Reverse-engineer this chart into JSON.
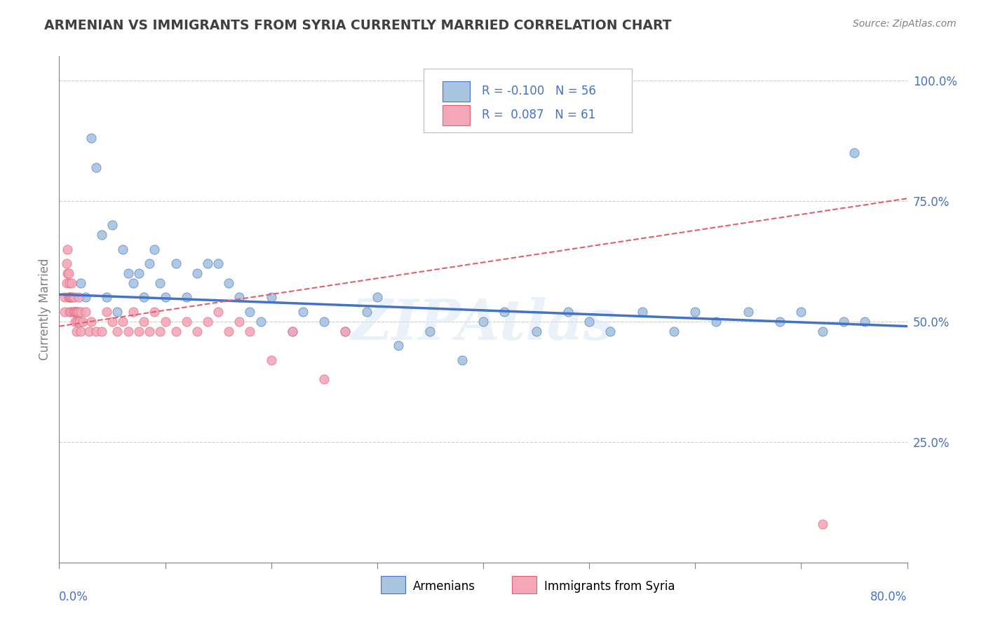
{
  "title": "ARMENIAN VS IMMIGRANTS FROM SYRIA CURRENTLY MARRIED CORRELATION CHART",
  "source": "Source: ZipAtlas.com",
  "ylabel": "Currently Married",
  "legend_r": [
    -0.1,
    0.087
  ],
  "legend_n": [
    56,
    61
  ],
  "armenian_color": "#a8c4e0",
  "syria_color": "#f4a7b9",
  "armenian_line_color": "#4472c4",
  "syria_line_color": "#e06070",
  "title_color": "#404040",
  "axis_color": "#808080",
  "background_color": "#ffffff",
  "armenian_x": [
    0.01,
    0.015,
    0.02,
    0.02,
    0.025,
    0.03,
    0.035,
    0.04,
    0.045,
    0.05,
    0.055,
    0.06,
    0.065,
    0.07,
    0.075,
    0.08,
    0.085,
    0.09,
    0.095,
    0.1,
    0.11,
    0.12,
    0.13,
    0.14,
    0.15,
    0.16,
    0.17,
    0.18,
    0.19,
    0.2,
    0.22,
    0.23,
    0.25,
    0.27,
    0.29,
    0.3,
    0.32,
    0.35,
    0.38,
    0.4,
    0.42,
    0.45,
    0.48,
    0.5,
    0.52,
    0.55,
    0.58,
    0.6,
    0.62,
    0.65,
    0.68,
    0.7,
    0.72,
    0.74,
    0.75,
    0.76
  ],
  "armenian_y": [
    0.55,
    0.52,
    0.58,
    0.5,
    0.55,
    0.88,
    0.82,
    0.68,
    0.55,
    0.7,
    0.52,
    0.65,
    0.6,
    0.58,
    0.6,
    0.55,
    0.62,
    0.65,
    0.58,
    0.55,
    0.62,
    0.55,
    0.6,
    0.62,
    0.62,
    0.58,
    0.55,
    0.52,
    0.5,
    0.55,
    0.48,
    0.52,
    0.5,
    0.48,
    0.52,
    0.55,
    0.45,
    0.48,
    0.42,
    0.5,
    0.52,
    0.48,
    0.52,
    0.5,
    0.48,
    0.52,
    0.48,
    0.52,
    0.5,
    0.52,
    0.5,
    0.52,
    0.48,
    0.5,
    0.85,
    0.5
  ],
  "syria_x": [
    0.005,
    0.005,
    0.007,
    0.007,
    0.008,
    0.008,
    0.009,
    0.009,
    0.01,
    0.01,
    0.01,
    0.011,
    0.011,
    0.012,
    0.012,
    0.013,
    0.013,
    0.014,
    0.014,
    0.015,
    0.015,
    0.016,
    0.016,
    0.017,
    0.017,
    0.018,
    0.018,
    0.019,
    0.02,
    0.02,
    0.022,
    0.025,
    0.028,
    0.03,
    0.035,
    0.04,
    0.045,
    0.05,
    0.055,
    0.06,
    0.065,
    0.07,
    0.075,
    0.08,
    0.085,
    0.09,
    0.095,
    0.1,
    0.11,
    0.12,
    0.13,
    0.14,
    0.15,
    0.16,
    0.17,
    0.18,
    0.2,
    0.22,
    0.25,
    0.27,
    0.72
  ],
  "syria_y": [
    0.52,
    0.55,
    0.58,
    0.62,
    0.6,
    0.65,
    0.55,
    0.6,
    0.52,
    0.55,
    0.58,
    0.52,
    0.55,
    0.55,
    0.58,
    0.52,
    0.55,
    0.52,
    0.55,
    0.52,
    0.5,
    0.52,
    0.48,
    0.52,
    0.5,
    0.55,
    0.52,
    0.5,
    0.52,
    0.48,
    0.5,
    0.52,
    0.48,
    0.5,
    0.48,
    0.48,
    0.52,
    0.5,
    0.48,
    0.5,
    0.48,
    0.52,
    0.48,
    0.5,
    0.48,
    0.52,
    0.48,
    0.5,
    0.48,
    0.5,
    0.48,
    0.5,
    0.52,
    0.48,
    0.5,
    0.48,
    0.42,
    0.48,
    0.38,
    0.48,
    0.08
  ],
  "arm_trend_x": [
    0.0,
    0.8
  ],
  "arm_trend_y": [
    0.556,
    0.49
  ],
  "syr_trend_x": [
    0.0,
    0.8
  ],
  "syr_trend_y": [
    0.49,
    0.755
  ],
  "xlim": [
    0.0,
    0.8
  ],
  "ylim": [
    0.0,
    1.05
  ],
  "yticks": [
    0.25,
    0.5,
    0.75,
    1.0
  ],
  "ytick_labels": [
    "25.0%",
    "50.0%",
    "75.0%",
    "100.0%"
  ],
  "grid_color": "#cccccc"
}
